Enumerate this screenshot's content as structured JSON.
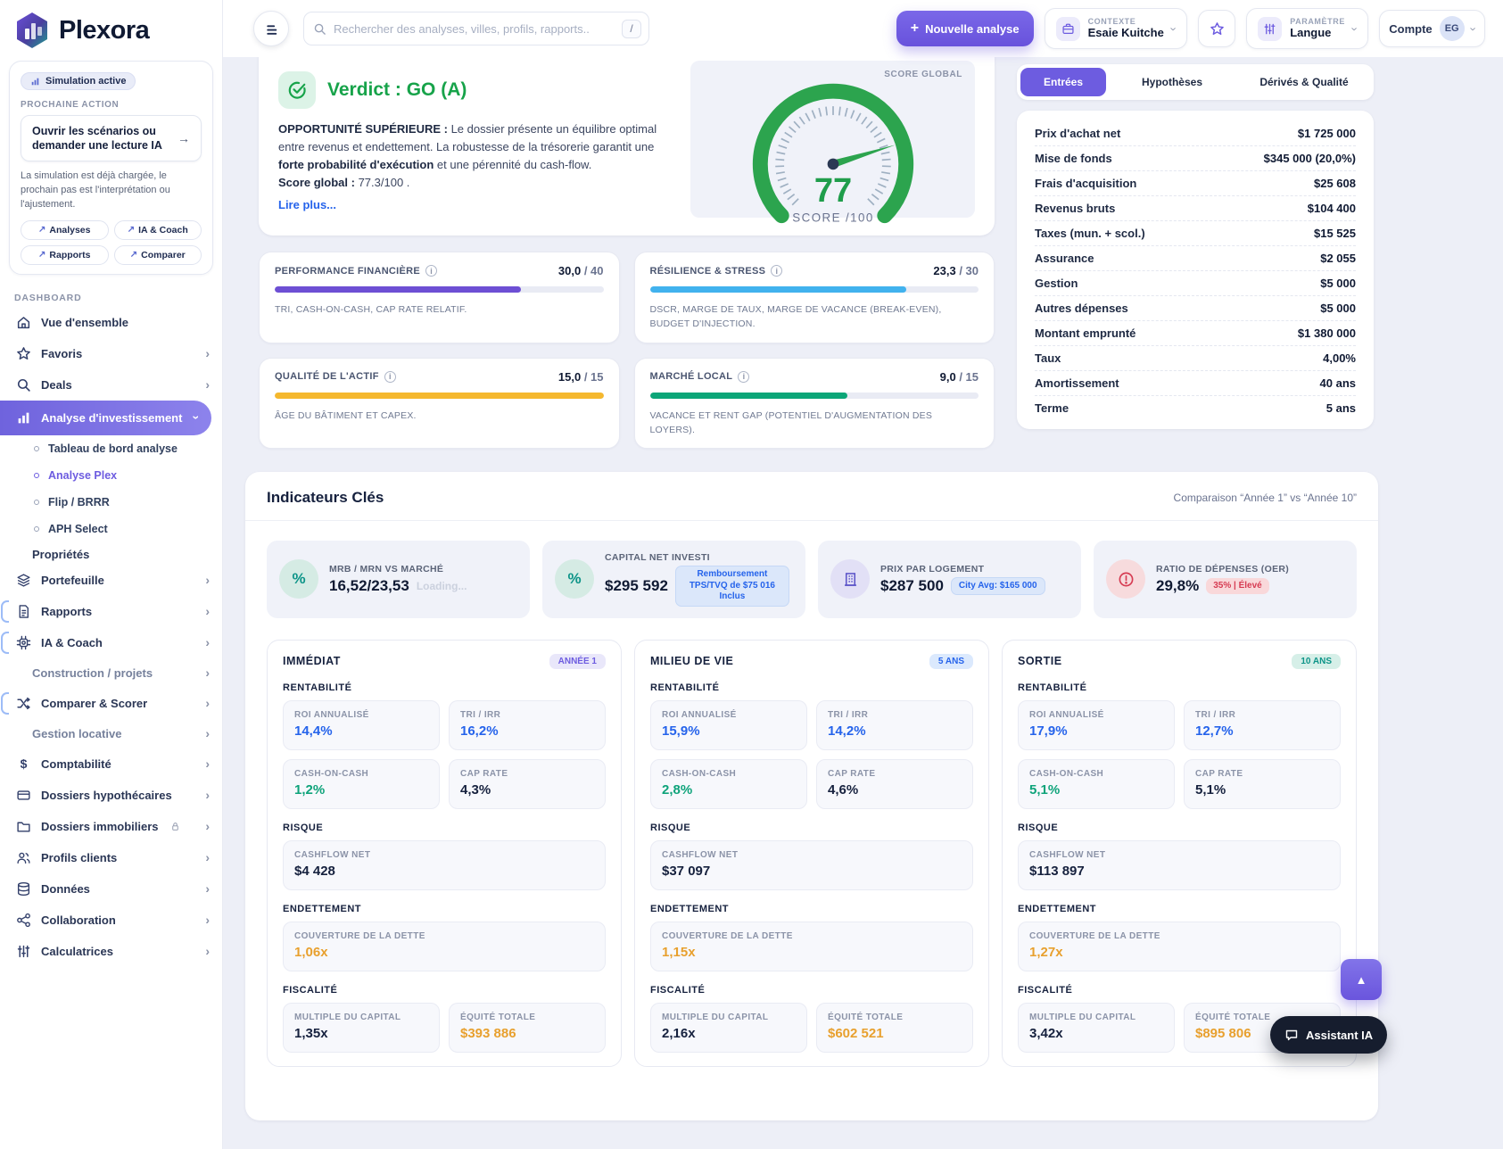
{
  "palette": {
    "accent_purple": "#6d5ce0",
    "verdict_green": "#17a34a",
    "gauge_green": "#2ca44e",
    "value_blue": "#2563eb",
    "value_teal": "#0ea37a",
    "value_orange": "#e8a02e",
    "bar_purple": "#6d4fd4",
    "bar_blue": "#41b2ee",
    "bar_amber": "#f5b82e",
    "bar_teal": "#0ca678",
    "badge_red_text": "#d63b52",
    "page_bg": "#edeff7"
  },
  "header": {
    "search_placeholder": "Rechercher des analyses, villes, profils, rapports..",
    "search_shortcut": "/",
    "new_analysis_plus": "+",
    "new_analysis_label": "Nouvelle analyse",
    "context_label": "CONTEXTE",
    "context_value": "Esaie Kuitche",
    "param_label": "PARAMÈTRE",
    "param_value": "Langue",
    "account_label": "Compte",
    "account_initials": "EG"
  },
  "sidebar": {
    "brand": "Plexora",
    "sim_badge": "Simulation active",
    "next_action_label": "PROCHAINE ACTION",
    "action_title": "Ouvrir les scénarios ou demander une lecture IA",
    "action_arrow": "→",
    "action_desc": "La simulation est déjà chargée, le prochain pas est l'interprétation ou l'ajustement.",
    "pills": [
      {
        "label": "Analyses"
      },
      {
        "label": "IA & Coach"
      },
      {
        "label": "Rapports"
      },
      {
        "label": "Comparer"
      }
    ],
    "section_dashboard": "DASHBOARD",
    "section_properties": "Propriétés",
    "nav": [
      {
        "label": "Vue d'ensemble"
      },
      {
        "label": "Favoris"
      },
      {
        "label": "Deals"
      },
      {
        "label": "Analyse d'investissement"
      },
      {
        "label": "Portefeuille"
      },
      {
        "label": "Rapports"
      },
      {
        "label": "IA & Coach"
      },
      {
        "label": "Construction / projets"
      },
      {
        "label": "Comparer & Scorer"
      },
      {
        "label": "Gestion locative"
      },
      {
        "label": "Comptabilité"
      },
      {
        "label": "Dossiers hypothécaires"
      },
      {
        "label": "Dossiers immobiliers"
      },
      {
        "label": "Profils clients"
      },
      {
        "label": "Données"
      },
      {
        "label": "Collaboration"
      },
      {
        "label": "Calculatrices"
      }
    ],
    "analysis_sub": [
      {
        "label": "Tableau de bord analyse",
        "active": false
      },
      {
        "label": "Analyse Plex",
        "active": true
      },
      {
        "label": "Flip / BRRR",
        "active": false
      },
      {
        "label": "APH Select",
        "active": false
      }
    ]
  },
  "verdict": {
    "title": "Verdict : GO (A)",
    "lead": "OPPORTUNITÉ SUPÉRIEURE :",
    "t1": " Le dossier présente un équilibre optimal entre revenus et endettement. La robustesse de la trésorerie garantit une ",
    "b1": "forte probabilité d'exécution",
    "t2": " et une pérennité du cash-flow.",
    "score_label": "Score global :",
    "score_text": " 77.3/100 .",
    "link": "Lire plus...",
    "gauge": {
      "header": "SCORE GLOBAL",
      "score": "77",
      "sub": "SCORE /100",
      "value": 77,
      "max": 100
    }
  },
  "scores": [
    {
      "title": "PERFORMANCE FINANCIÈRE",
      "value": "30,0",
      "max": " / 40",
      "pct": "75%",
      "desc": "TRI, CASH-ON-CASH, CAP RATE RELATIF."
    },
    {
      "title": "RÉSILIENCE & STRESS",
      "value": "23,3",
      "max": " / 30",
      "pct": "78%",
      "desc": "DSCR, MARGE DE TAUX, MARGE DE VACANCE (BREAK-EVEN), BUDGET D'INJECTION."
    },
    {
      "title": "QUALITÉ DE L'ACTIF",
      "value": "15,0",
      "max": " / 15",
      "pct": "100%",
      "desc": "ÂGE DU BÂTIMENT ET CAPEX."
    },
    {
      "title": "MARCHÉ LOCAL",
      "value": "9,0",
      "max": " / 15",
      "pct": "60%",
      "desc": "VACANCE ET RENT GAP (POTENTIEL D'AUGMENTATION DES LOYERS)."
    }
  ],
  "panel": {
    "tabs": [
      {
        "label": "Entrées",
        "active": true
      },
      {
        "label": "Hypothèses",
        "active": false
      },
      {
        "label": "Dérivés & Qualité",
        "active": false
      }
    ],
    "rows": [
      {
        "label": "Prix d'achat net",
        "value": "$1 725 000"
      },
      {
        "label": "Mise de fonds",
        "value": "$345 000 (20,0%)"
      },
      {
        "label": "Frais d'acquisition",
        "value": "$25 608"
      },
      {
        "label": "Revenus bruts",
        "value": "$104 400"
      },
      {
        "label": "Taxes (mun. + scol.)",
        "value": "$15 525"
      },
      {
        "label": "Assurance",
        "value": "$2 055"
      },
      {
        "label": "Gestion",
        "value": "$5 000"
      },
      {
        "label": "Autres dépenses",
        "value": "$5 000"
      },
      {
        "label": "Montant emprunté",
        "value": "$1 380 000"
      },
      {
        "label": "Taux",
        "value": "4,00%"
      },
      {
        "label": "Amortissement",
        "value": "40 ans"
      },
      {
        "label": "Terme",
        "value": "5 ans"
      }
    ]
  },
  "indicators": {
    "title": "Indicateurs Clés",
    "comparison": "Comparaison “Année 1” vs “Année 10”",
    "kpis": [
      {
        "label": "MRB / MRN VS MARCHÉ",
        "value": "16,52/23,53",
        "loading": "Loading..."
      },
      {
        "label": "CAPITAL NET INVESTI",
        "value": "$295 592",
        "badge": "Remboursement TPS/TVQ de $75 016 Inclus"
      },
      {
        "label": "PRIX PAR LOGEMENT",
        "value": "$287 500",
        "badge": "City Avg: $165 000"
      },
      {
        "label": "RATIO DE DÉPENSES (OER)",
        "value": "29,8%",
        "badge": "35% | Élevé"
      }
    ]
  },
  "sections": {
    "rentabilite": "RENTABILITÉ",
    "risque": "RISQUE",
    "endettement": "ENDETTEMENT",
    "fiscalite": "FISCALITÉ"
  },
  "columns": [
    {
      "title": "IMMÉDIAT",
      "badge": "ANNÉE 1",
      "rent": [
        {
          "label": "ROI ANNUALISÉ",
          "value": "14,4%"
        },
        {
          "label": "TRI / IRR",
          "value": "16,2%"
        },
        {
          "label": "CASH-ON-CASH",
          "value": "1,2%"
        },
        {
          "label": "CAP RATE",
          "value": "4,3%"
        }
      ],
      "risk": {
        "label": "CASHFLOW NET",
        "value": "$4 428"
      },
      "debt": {
        "label": "COUVERTURE DE LA DETTE",
        "value": "1,06x"
      },
      "fisc": [
        {
          "label": "MULTIPLE DU CAPITAL",
          "value": "1,35x"
        },
        {
          "label": "ÉQUITÉ TOTALE",
          "value": "$393 886"
        }
      ]
    },
    {
      "title": "MILIEU DE VIE",
      "badge": "5 ANS",
      "rent": [
        {
          "label": "ROI ANNUALISÉ",
          "value": "15,9%"
        },
        {
          "label": "TRI / IRR",
          "value": "14,2%"
        },
        {
          "label": "CASH-ON-CASH",
          "value": "2,8%"
        },
        {
          "label": "CAP RATE",
          "value": "4,6%"
        }
      ],
      "risk": {
        "label": "CASHFLOW NET",
        "value": "$37 097"
      },
      "debt": {
        "label": "COUVERTURE DE LA DETTE",
        "value": "1,15x"
      },
      "fisc": [
        {
          "label": "MULTIPLE DU CAPITAL",
          "value": "2,16x"
        },
        {
          "label": "ÉQUITÉ TOTALE",
          "value": "$602 521"
        }
      ]
    },
    {
      "title": "SORTIE",
      "badge": "10 ANS",
      "rent": [
        {
          "label": "ROI ANNUALISÉ",
          "value": "17,9%"
        },
        {
          "label": "TRI / IRR",
          "value": "12,7%"
        },
        {
          "label": "CASH-ON-CASH",
          "value": "5,1%"
        },
        {
          "label": "CAP RATE",
          "value": "5,1%"
        }
      ],
      "risk": {
        "label": "CASHFLOW NET",
        "value": "$113 897"
      },
      "debt": {
        "label": "COUVERTURE DE LA DETTE",
        "value": "1,27x"
      },
      "fisc": [
        {
          "label": "MULTIPLE DU CAPITAL",
          "value": "3,42x"
        },
        {
          "label": "ÉQUITÉ TOTALE",
          "value": "$895 806"
        }
      ]
    }
  ],
  "floating": {
    "assistant": "Assistant IA"
  }
}
